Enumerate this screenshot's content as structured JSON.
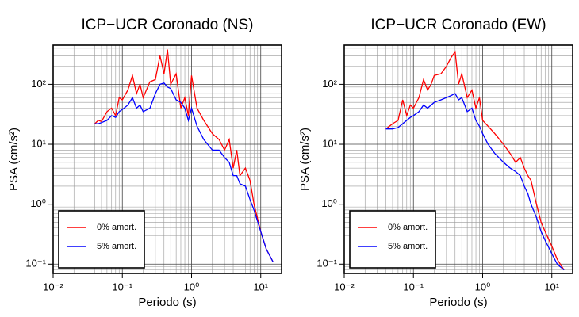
{
  "chart_data": [
    {
      "type": "line",
      "title": "ICP−UCR Coronado (NS)",
      "xlabel": "Periodo (s)",
      "ylabel": "PSA (cm/s²)",
      "xscale": "log",
      "yscale": "log",
      "grid": true,
      "legend": "lower left",
      "xlim": [
        0.01,
        20
      ],
      "ylim": [
        0.07,
        450
      ],
      "xticks": [
        {
          "value": 0.01,
          "label": "10⁻²"
        },
        {
          "value": 0.1,
          "label": "10⁻¹"
        },
        {
          "value": 1,
          "label": "10⁰"
        },
        {
          "value": 10,
          "label": "10¹"
        }
      ],
      "yticks": [
        {
          "value": 0.1,
          "label": "10⁻¹"
        },
        {
          "value": 1,
          "label": "10⁰"
        },
        {
          "value": 10,
          "label": "10¹"
        },
        {
          "value": 100,
          "label": "10²"
        }
      ],
      "xminorticks": [
        0.02,
        0.03,
        0.04,
        0.05,
        0.06,
        0.07,
        0.08,
        0.09,
        0.2,
        0.3,
        0.4,
        0.5,
        0.6,
        0.7,
        0.8,
        0.9,
        2,
        3,
        4,
        5,
        6,
        7,
        8,
        9,
        20
      ],
      "yminorticks": [
        0.07,
        0.08,
        0.09,
        0.2,
        0.3,
        0.4,
        0.5,
        0.6,
        0.7,
        0.8,
        0.9,
        2,
        3,
        4,
        5,
        6,
        7,
        8,
        9,
        20,
        30,
        40,
        50,
        60,
        70,
        80,
        90,
        200,
        300,
        400
      ],
      "x": [
        0.04,
        0.045,
        0.05,
        0.06,
        0.07,
        0.08,
        0.09,
        0.1,
        0.12,
        0.14,
        0.16,
        0.18,
        0.2,
        0.25,
        0.3,
        0.35,
        0.4,
        0.45,
        0.5,
        0.6,
        0.7,
        0.8,
        0.9,
        1.0,
        1.2,
        1.5,
        2,
        2.5,
        3,
        3.5,
        4,
        4.5,
        5,
        6,
        7,
        8,
        10,
        12,
        15
      ],
      "series": [
        {
          "name": "0% amort.",
          "color": "#ff0000",
          "values": [
            22,
            25,
            24,
            35,
            40,
            30,
            60,
            55,
            80,
            140,
            70,
            100,
            60,
            110,
            120,
            300,
            150,
            380,
            100,
            150,
            40,
            60,
            30,
            140,
            40,
            25,
            15,
            12,
            8,
            12,
            4,
            8,
            3,
            4,
            2.5,
            1,
            0.35,
            0.18,
            0.11
          ]
        },
        {
          "name": "5% amort.",
          "color": "#0000ff",
          "values": [
            22,
            22,
            23,
            25,
            30,
            28,
            35,
            38,
            45,
            60,
            40,
            45,
            35,
            40,
            70,
            100,
            105,
            90,
            85,
            55,
            50,
            40,
            25,
            40,
            20,
            12,
            8,
            8,
            6,
            5,
            3,
            3,
            2.2,
            2,
            1.2,
            0.8,
            0.35,
            0.18,
            0.11
          ]
        }
      ]
    },
    {
      "type": "line",
      "title": "ICP−UCR Coronado (EW)",
      "xlabel": "Periodo (s)",
      "ylabel": "PSA (cm/s²)",
      "xscale": "log",
      "yscale": "log",
      "grid": true,
      "legend": "lower left",
      "xlim": [
        0.01,
        20
      ],
      "ylim": [
        0.07,
        450
      ],
      "xticks": [
        {
          "value": 0.01,
          "label": "10⁻²"
        },
        {
          "value": 0.1,
          "label": "10⁻¹"
        },
        {
          "value": 1,
          "label": "10⁰"
        },
        {
          "value": 10,
          "label": "10¹"
        }
      ],
      "yticks": [
        {
          "value": 0.1,
          "label": "10⁻¹"
        },
        {
          "value": 1,
          "label": "10⁰"
        },
        {
          "value": 10,
          "label": "10¹"
        },
        {
          "value": 100,
          "label": "10²"
        }
      ],
      "xminorticks": [
        0.02,
        0.03,
        0.04,
        0.05,
        0.06,
        0.07,
        0.08,
        0.09,
        0.2,
        0.3,
        0.4,
        0.5,
        0.6,
        0.7,
        0.8,
        0.9,
        2,
        3,
        4,
        5,
        6,
        7,
        8,
        9,
        20
      ],
      "yminorticks": [
        0.07,
        0.08,
        0.09,
        0.2,
        0.3,
        0.4,
        0.5,
        0.6,
        0.7,
        0.8,
        0.9,
        2,
        3,
        4,
        5,
        6,
        7,
        8,
        9,
        20,
        30,
        40,
        50,
        60,
        70,
        80,
        90,
        200,
        300,
        400
      ],
      "x": [
        0.04,
        0.045,
        0.05,
        0.06,
        0.07,
        0.08,
        0.09,
        0.1,
        0.12,
        0.14,
        0.16,
        0.18,
        0.2,
        0.25,
        0.3,
        0.35,
        0.4,
        0.45,
        0.5,
        0.6,
        0.7,
        0.8,
        0.9,
        1.0,
        1.2,
        1.5,
        2,
        2.5,
        3,
        3.5,
        4,
        4.5,
        5,
        6,
        7,
        8,
        10,
        12,
        15
      ],
      "series": [
        {
          "name": "0% amort.",
          "color": "#ff0000",
          "values": [
            18,
            20,
            22,
            25,
            55,
            30,
            45,
            40,
            60,
            120,
            80,
            100,
            140,
            150,
            200,
            280,
            350,
            100,
            150,
            60,
            80,
            40,
            60,
            25,
            20,
            15,
            10,
            7,
            5,
            6,
            4,
            3,
            2.5,
            1,
            0.5,
            0.35,
            0.2,
            0.12,
            0.08
          ]
        },
        {
          "name": "5% amort.",
          "color": "#0000ff",
          "values": [
            18,
            18,
            18,
            19,
            22,
            25,
            28,
            30,
            35,
            45,
            40,
            45,
            50,
            55,
            60,
            65,
            70,
            55,
            60,
            35,
            40,
            25,
            20,
            15,
            10,
            7,
            5,
            4,
            3.5,
            3,
            2,
            1.5,
            1,
            0.6,
            0.35,
            0.25,
            0.15,
            0.1,
            0.08
          ]
        }
      ]
    }
  ]
}
